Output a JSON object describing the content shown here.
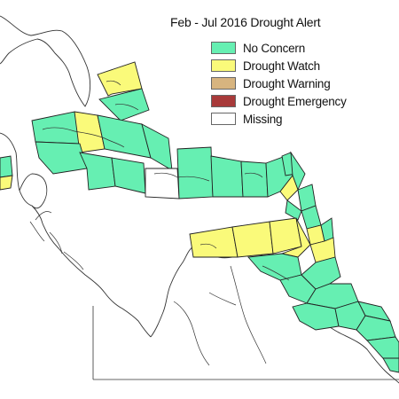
{
  "title": "Feb - Jul 2016 Drought Alert",
  "legend": [
    {
      "label": "No Concern",
      "color": "#66efb2"
    },
    {
      "label": "Drought Watch",
      "color": "#fafa7a"
    },
    {
      "label": "Drought Warning",
      "color": "#d7b47f"
    },
    {
      "label": "Drought Emergency",
      "color": "#a83a3a"
    },
    {
      "label": "Missing",
      "color": "#ffffff"
    }
  ],
  "map": {
    "region": "Caribbean",
    "land_fill": "#ffffff",
    "outline_color": "#333333",
    "zone_border_color": "#222222"
  }
}
